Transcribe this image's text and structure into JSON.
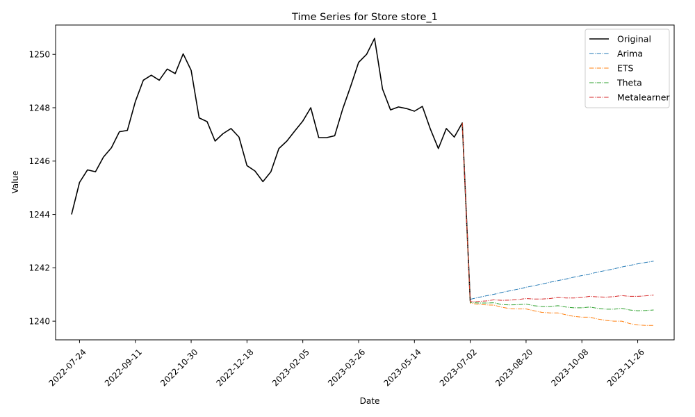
{
  "chart_data": {
    "type": "line",
    "title": "Time Series for Store store_1",
    "xlabel": "Date",
    "ylabel": "Value",
    "xlim": [
      "2022-07-03",
      "2023-12-28"
    ],
    "ylim": [
      1239.3,
      1251.1
    ],
    "x_ticks": [
      "2022-07-24",
      "2022-09-11",
      "2022-10-30",
      "2022-12-18",
      "2023-02-05",
      "2023-03-26",
      "2023-05-14",
      "2023-07-02",
      "2023-08-20",
      "2023-10-08",
      "2023-11-26"
    ],
    "y_ticks": [
      1240,
      1242,
      1244,
      1246,
      1248,
      1250
    ],
    "legend_position": "top-right",
    "grid": false,
    "series": [
      {
        "name": "Original",
        "color": "#000000",
        "style": "solid",
        "x": [
          "2022-07-17",
          "2022-07-24",
          "2022-07-31",
          "2022-08-07",
          "2022-08-14",
          "2022-08-21",
          "2022-08-28",
          "2022-09-04",
          "2022-09-11",
          "2022-09-18",
          "2022-09-25",
          "2022-10-02",
          "2022-10-09",
          "2022-10-16",
          "2022-10-23",
          "2022-10-30",
          "2022-11-06",
          "2022-11-13",
          "2022-11-20",
          "2022-11-27",
          "2022-12-04",
          "2022-12-11",
          "2022-12-18",
          "2022-12-25",
          "2023-01-01",
          "2023-01-08",
          "2023-01-15",
          "2023-01-22",
          "2023-01-29",
          "2023-02-05",
          "2023-02-12",
          "2023-02-19",
          "2023-02-26",
          "2023-03-05",
          "2023-03-12",
          "2023-03-19",
          "2023-03-26",
          "2023-04-02",
          "2023-04-09",
          "2023-04-16",
          "2023-04-23",
          "2023-04-30",
          "2023-05-07",
          "2023-05-14",
          "2023-05-21",
          "2023-05-28",
          "2023-06-04",
          "2023-06-11",
          "2023-06-18",
          "2023-06-25",
          "2023-07-02"
        ],
        "values": [
          1244.0,
          1245.2,
          1245.67,
          1245.6,
          1246.15,
          1246.5,
          1247.1,
          1247.15,
          1248.23,
          1249.03,
          1249.22,
          1249.03,
          1249.45,
          1249.28,
          1250.02,
          1249.4,
          1247.62,
          1247.48,
          1246.75,
          1247.03,
          1247.22,
          1246.9,
          1245.83,
          1245.63,
          1245.23,
          1245.6,
          1246.47,
          1246.75,
          1247.13,
          1247.5,
          1248.0,
          1246.88,
          1246.88,
          1246.95,
          1247.95,
          1248.8,
          1249.7,
          1250.0,
          1250.6,
          1248.7,
          1247.92,
          1248.03,
          1247.97,
          1247.87,
          1248.05,
          1247.2,
          1246.47,
          1247.22,
          1246.9,
          1247.43,
          1240.75
        ]
      },
      {
        "name": "Arima",
        "color": "#1f77b4",
        "style": "dashdot",
        "x": [
          "2023-06-25",
          "2023-07-02",
          "2023-07-09",
          "2023-07-16",
          "2023-07-23",
          "2023-07-30",
          "2023-08-06",
          "2023-08-13",
          "2023-08-20",
          "2023-08-27",
          "2023-09-03",
          "2023-09-10",
          "2023-09-17",
          "2023-09-24",
          "2023-10-01",
          "2023-10-08",
          "2023-10-15",
          "2023-10-22",
          "2023-10-29",
          "2023-11-05",
          "2023-11-12",
          "2023-11-19",
          "2023-11-26",
          "2023-12-03",
          "2023-12-10"
        ],
        "values": [
          1247.43,
          1240.82,
          1240.89,
          1240.95,
          1241.01,
          1241.08,
          1241.14,
          1241.2,
          1241.27,
          1241.33,
          1241.39,
          1241.46,
          1241.52,
          1241.58,
          1241.65,
          1241.71,
          1241.77,
          1241.84,
          1241.9,
          1241.96,
          1242.03,
          1242.09,
          1242.15,
          1242.2,
          1242.25
        ]
      },
      {
        "name": "ETS",
        "color": "#ff7f0e",
        "style": "dashdot",
        "x": [
          "2023-06-25",
          "2023-07-02",
          "2023-07-09",
          "2023-07-16",
          "2023-07-23",
          "2023-07-30",
          "2023-08-06",
          "2023-08-13",
          "2023-08-20",
          "2023-08-27",
          "2023-09-03",
          "2023-09-10",
          "2023-09-17",
          "2023-09-24",
          "2023-10-01",
          "2023-10-08",
          "2023-10-15",
          "2023-10-22",
          "2023-10-29",
          "2023-11-05",
          "2023-11-12",
          "2023-11-19",
          "2023-11-26",
          "2023-12-03",
          "2023-12-10"
        ],
        "values": [
          1247.43,
          1240.68,
          1240.63,
          1240.61,
          1240.6,
          1240.52,
          1240.47,
          1240.46,
          1240.46,
          1240.39,
          1240.33,
          1240.31,
          1240.31,
          1240.24,
          1240.18,
          1240.15,
          1240.15,
          1240.08,
          1240.03,
          1240.0,
          1240.0,
          1239.91,
          1239.86,
          1239.84,
          1239.84
        ]
      },
      {
        "name": "Theta",
        "color": "#2ca02c",
        "style": "dashdot",
        "x": [
          "2023-06-25",
          "2023-07-02",
          "2023-07-09",
          "2023-07-16",
          "2023-07-23",
          "2023-07-30",
          "2023-08-06",
          "2023-08-13",
          "2023-08-20",
          "2023-08-27",
          "2023-09-03",
          "2023-09-10",
          "2023-09-17",
          "2023-09-24",
          "2023-10-01",
          "2023-10-08",
          "2023-10-15",
          "2023-10-22",
          "2023-10-29",
          "2023-11-05",
          "2023-11-12",
          "2023-11-19",
          "2023-11-26",
          "2023-12-03",
          "2023-12-10"
        ],
        "values": [
          1247.43,
          1240.7,
          1240.68,
          1240.68,
          1240.69,
          1240.62,
          1240.61,
          1240.62,
          1240.64,
          1240.58,
          1240.55,
          1240.55,
          1240.58,
          1240.53,
          1240.5,
          1240.5,
          1240.53,
          1240.48,
          1240.45,
          1240.45,
          1240.48,
          1240.42,
          1240.39,
          1240.4,
          1240.42
        ]
      },
      {
        "name": "Metalearner",
        "color": "#d62728",
        "style": "dashdot",
        "x": [
          "2023-06-25",
          "2023-07-02",
          "2023-07-09",
          "2023-07-16",
          "2023-07-23",
          "2023-07-30",
          "2023-08-06",
          "2023-08-13",
          "2023-08-20",
          "2023-08-27",
          "2023-09-03",
          "2023-09-10",
          "2023-09-17",
          "2023-09-24",
          "2023-10-01",
          "2023-10-08",
          "2023-10-15",
          "2023-10-22",
          "2023-10-29",
          "2023-11-05",
          "2023-11-12",
          "2023-11-19",
          "2023-11-26",
          "2023-12-03",
          "2023-12-10"
        ],
        "values": [
          1247.43,
          1240.73,
          1240.74,
          1240.76,
          1240.8,
          1240.78,
          1240.79,
          1240.81,
          1240.85,
          1240.83,
          1240.83,
          1240.85,
          1240.89,
          1240.87,
          1240.87,
          1240.89,
          1240.93,
          1240.91,
          1240.9,
          1240.92,
          1240.96,
          1240.93,
          1240.93,
          1240.95,
          1240.98
        ]
      }
    ]
  }
}
